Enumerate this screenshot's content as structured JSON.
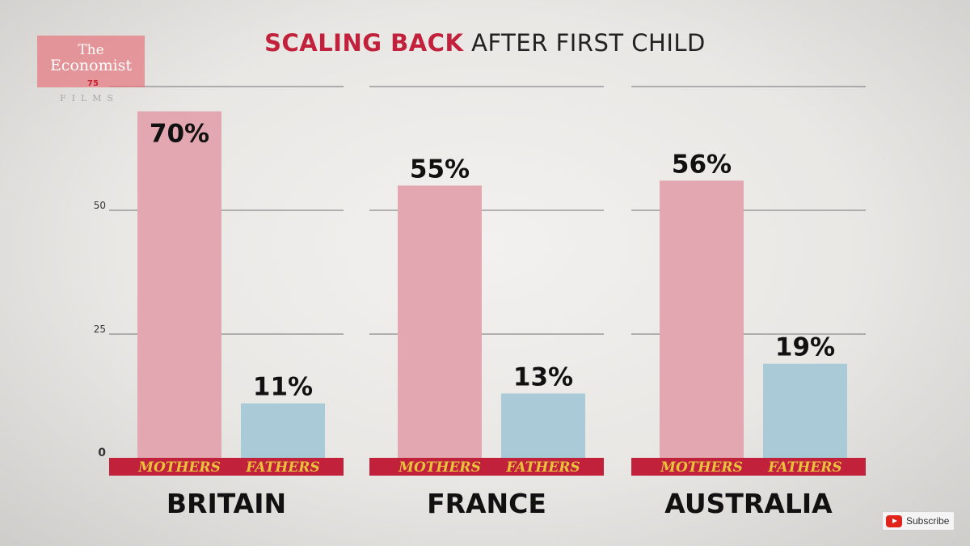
{
  "logo": {
    "line1": "The",
    "line2": "Economist",
    "number": "75",
    "sub": "FILMS"
  },
  "title": {
    "highlight": "SCALING BACK",
    "rest": "AFTER FIRST CHILD"
  },
  "colors": {
    "mothers": "#e3a7b1",
    "fathers": "#a9cad6",
    "accent": "#c1213a",
    "label_text": "#e8c23a",
    "grid": "#8a8a8a"
  },
  "chart_data": {
    "type": "bar",
    "ylim": [
      0,
      75
    ],
    "yticks": [
      0,
      25,
      50
    ],
    "series_labels": [
      "MOTHERS",
      "FATHERS"
    ],
    "groups": [
      {
        "name": "BRITAIN",
        "values": [
          70,
          11
        ],
        "labels": [
          "70%",
          "11%"
        ]
      },
      {
        "name": "FRANCE",
        "values": [
          55,
          13
        ],
        "labels": [
          "55%",
          "13%"
        ]
      },
      {
        "name": "AUSTRALIA",
        "values": [
          56,
          19
        ],
        "labels": [
          "56%",
          "19%"
        ]
      }
    ]
  },
  "subscribe": {
    "label": "Subscribe"
  }
}
